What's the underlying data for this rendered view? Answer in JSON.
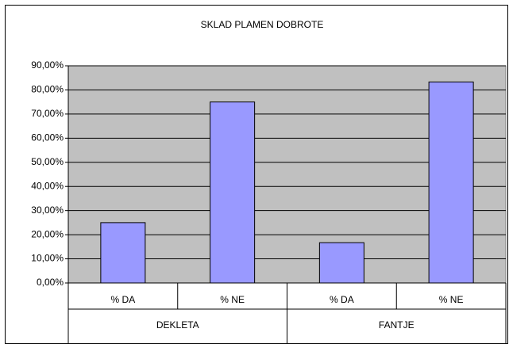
{
  "chart_data": {
    "type": "bar",
    "title": "SKLAD PLAMEN DOBROTE",
    "categories": [
      "% DA",
      "% NE",
      "% DA",
      "% NE"
    ],
    "groups": [
      "DEKLETA",
      "FANTJE"
    ],
    "values": [
      25,
      75,
      16.7,
      83.3
    ],
    "color": "#9999ff",
    "ylim": [
      0,
      90
    ],
    "yticks": [
      {
        "value": 0,
        "label": "0,00%"
      },
      {
        "value": 10,
        "label": "10,00%"
      },
      {
        "value": 20,
        "label": "20,00%"
      },
      {
        "value": 30,
        "label": "30,00%"
      },
      {
        "value": 40,
        "label": "40,00%"
      },
      {
        "value": 50,
        "label": "50,00%"
      },
      {
        "value": 60,
        "label": "60,00%"
      },
      {
        "value": 70,
        "label": "70,00%"
      },
      {
        "value": 80,
        "label": "80,00%"
      },
      {
        "value": 90,
        "label": "90,00%"
      }
    ],
    "grid": true
  }
}
